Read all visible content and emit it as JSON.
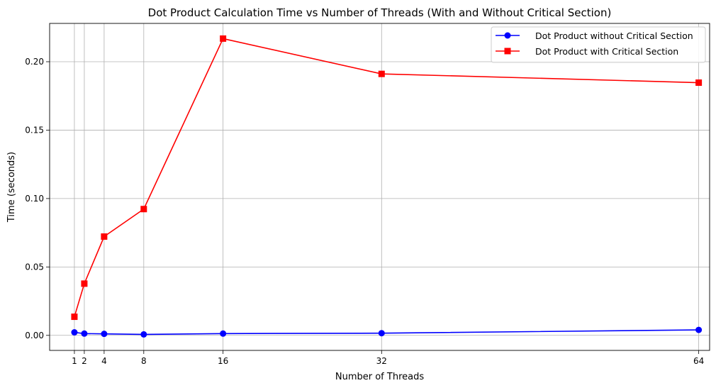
{
  "chart_data": {
    "type": "line",
    "title": "Dot Product Calculation Time vs Number of Threads (With and Without Critical Section)",
    "xlabel": "Number of Threads",
    "ylabel": "Time (seconds)",
    "x": [
      1,
      2,
      4,
      8,
      16,
      32,
      64
    ],
    "x_ticks": [
      "1",
      "2",
      "4",
      "8",
      "16",
      "32",
      "64"
    ],
    "y_ticks": [
      "0.00",
      "0.05",
      "0.10",
      "0.15",
      "0.20"
    ],
    "xlim": [
      -1.5,
      65.1
    ],
    "ylim": [
      -0.011,
      0.228
    ],
    "grid": true,
    "legend_position": "top-right",
    "series": [
      {
        "name": "Dot Product without Critical Section",
        "color": "#0000ff",
        "marker": "circle",
        "values": [
          0.0022,
          0.0013,
          0.0011,
          0.0007,
          0.0013,
          0.0016,
          0.004
        ]
      },
      {
        "name": "Dot Product with Critical Section",
        "color": "#ff0000",
        "marker": "square",
        "values": [
          0.0136,
          0.0378,
          0.0722,
          0.0923,
          0.2169,
          0.1911,
          0.1847
        ]
      }
    ]
  }
}
